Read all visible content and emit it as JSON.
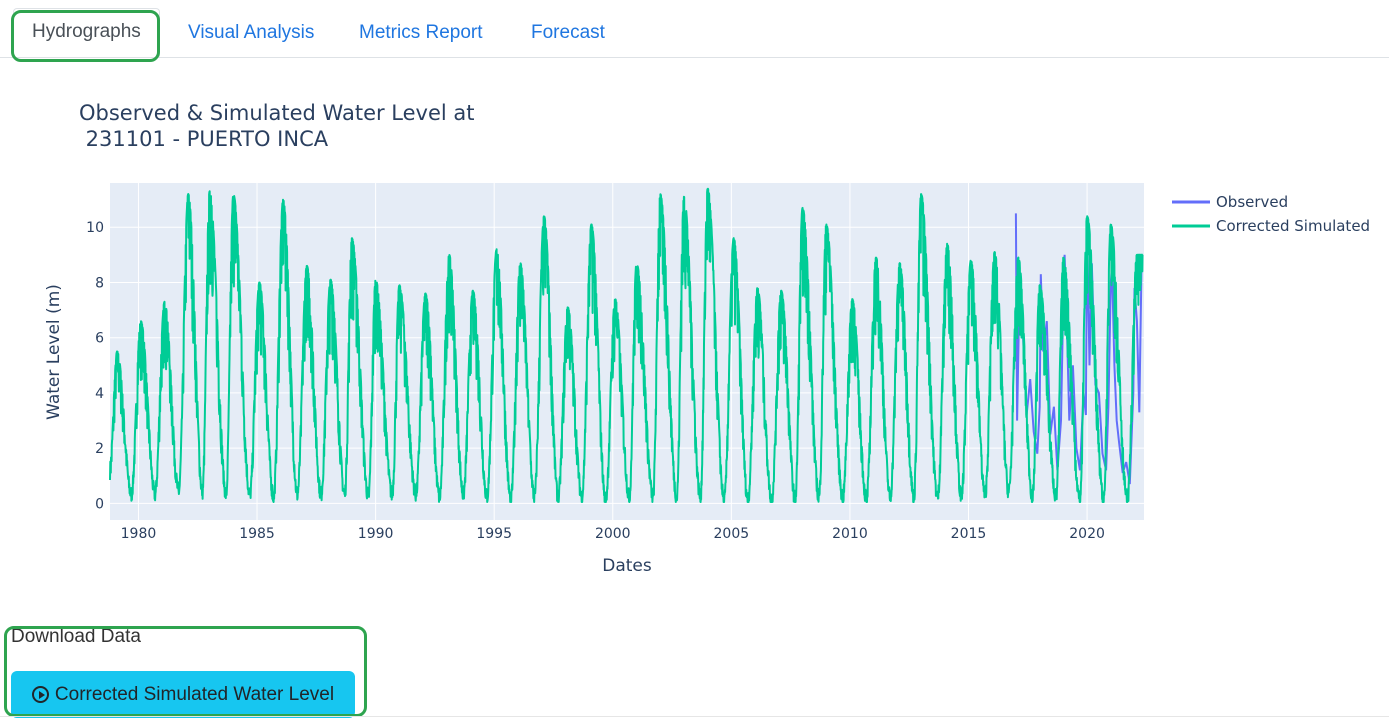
{
  "tabs": [
    {
      "label": "Hydrographs",
      "active": true
    },
    {
      "label": "Visual Analysis",
      "active": false
    },
    {
      "label": "Metrics Report",
      "active": false
    },
    {
      "label": "Forecast",
      "active": false
    }
  ],
  "download": {
    "label": "Download Data",
    "button_label": "Corrected Simulated Water Level",
    "button_icon": "play-circle-icon",
    "button_color": "#17c6f0"
  },
  "highlight_color": "#2ea44f",
  "chart_data": {
    "type": "line",
    "title_line1": "Observed & Simulated Water Level at",
    "title_line2": " 231101 - PUERTO INCA",
    "xlabel": "Dates",
    "ylabel": "Water Level (m)",
    "xlim": [
      1978.8,
      2022.4
    ],
    "ylim": [
      -0.6,
      11.6
    ],
    "x_ticks": [
      1980,
      1985,
      1990,
      1995,
      2000,
      2005,
      2010,
      2015,
      2020
    ],
    "y_ticks": [
      0,
      2,
      4,
      6,
      8,
      10
    ],
    "grid": true,
    "legend_position": "top-right",
    "series": [
      {
        "name": "Observed",
        "color": "#636efa",
        "x": [
          2017.0,
          2017.05,
          2017.15,
          2017.3,
          2017.45,
          2017.6,
          2017.75,
          2017.9,
          2018.0,
          2018.05,
          2018.15,
          2018.3,
          2018.45,
          2018.6,
          2018.75,
          2018.9,
          2019.0,
          2019.05,
          2019.15,
          2019.25,
          2019.4,
          2019.55,
          2019.7,
          2019.85,
          2019.95,
          2020.0,
          2020.1,
          2020.2,
          2020.35,
          2020.5,
          2020.65,
          2020.8,
          2020.9,
          2021.0,
          2021.05,
          2021.15,
          2021.25,
          2021.35,
          2021.5,
          2021.65,
          2021.8,
          2021.95,
          2022.0,
          2022.1,
          2022.2,
          2022.3
        ],
        "y": [
          10.5,
          3.0,
          7.8,
          6.0,
          3.2,
          4.5,
          2.6,
          1.8,
          3.5,
          8.3,
          5.5,
          6.6,
          2.5,
          3.5,
          1.2,
          3.0,
          7.6,
          9.0,
          6.4,
          3.0,
          5.0,
          2.0,
          1.2,
          4.0,
          3.2,
          10.1,
          5.0,
          8.7,
          4.3,
          4.0,
          1.8,
          1.2,
          3.5,
          8.0,
          8.6,
          5.0,
          3.0,
          2.2,
          1.1,
          1.5,
          0.7,
          4.0,
          7.8,
          6.6,
          3.3,
          8.8
        ]
      },
      {
        "name": "Corrected Simulated",
        "color": "#00cc96",
        "annual_peaks": [
          [
            1979.1,
            5.2
          ],
          [
            1980.1,
            6.3
          ],
          [
            1981.1,
            7.0
          ],
          [
            1982.1,
            10.9
          ],
          [
            1983.0,
            11.0
          ],
          [
            1984.0,
            10.9
          ],
          [
            1985.1,
            7.7
          ],
          [
            1986.1,
            10.7
          ],
          [
            1987.1,
            8.3
          ],
          [
            1988.1,
            7.8
          ],
          [
            1989.0,
            9.3
          ],
          [
            1990.0,
            7.8
          ],
          [
            1991.0,
            7.6
          ],
          [
            1992.1,
            7.3
          ],
          [
            1993.1,
            8.7
          ],
          [
            1994.1,
            7.4
          ],
          [
            1995.1,
            8.9
          ],
          [
            1996.1,
            8.4
          ],
          [
            1997.1,
            10.1
          ],
          [
            1998.1,
            6.8
          ],
          [
            1999.1,
            9.8
          ],
          [
            2000.1,
            7.1
          ],
          [
            2001.0,
            8.4
          ],
          [
            2002.0,
            10.9
          ],
          [
            2003.0,
            10.8
          ],
          [
            2004.0,
            11.1
          ],
          [
            2005.1,
            9.3
          ],
          [
            2006.1,
            7.5
          ],
          [
            2007.1,
            7.4
          ],
          [
            2008.0,
            10.4
          ],
          [
            2009.0,
            9.8
          ],
          [
            2010.1,
            7.1
          ],
          [
            2011.1,
            8.6
          ],
          [
            2012.1,
            8.4
          ],
          [
            2013.0,
            10.9
          ],
          [
            2014.1,
            9.1
          ],
          [
            2015.1,
            8.5
          ],
          [
            2016.1,
            8.8
          ],
          [
            2017.1,
            8.6
          ],
          [
            2018.0,
            7.6
          ],
          [
            2019.0,
            8.6
          ],
          [
            2020.0,
            10.1
          ],
          [
            2021.0,
            9.8
          ],
          [
            2022.1,
            8.7
          ]
        ],
        "annual_lows": [
          [
            1979.7,
            0.3
          ],
          [
            1980.7,
            0.3
          ],
          [
            1981.7,
            0.4
          ],
          [
            1982.7,
            0.4
          ],
          [
            1983.7,
            0.3
          ],
          [
            1984.7,
            0.3
          ],
          [
            1985.7,
            0.2
          ],
          [
            1986.7,
            0.3
          ],
          [
            1987.7,
            0.3
          ],
          [
            1988.7,
            0.3
          ],
          [
            1989.7,
            0.2
          ],
          [
            1990.7,
            0.3
          ],
          [
            1991.7,
            0.3
          ],
          [
            1992.7,
            0.2
          ],
          [
            1993.7,
            0.3
          ],
          [
            1994.7,
            0.2
          ],
          [
            1995.7,
            0.1
          ],
          [
            1996.7,
            0.2
          ],
          [
            1997.7,
            0.2
          ],
          [
            1998.7,
            0.2
          ],
          [
            1999.7,
            0.1
          ],
          [
            2000.7,
            0.2
          ],
          [
            2001.7,
            0.2
          ],
          [
            2002.7,
            0.2
          ],
          [
            2003.7,
            0.2
          ],
          [
            2004.7,
            0.1
          ],
          [
            2005.7,
            0.1
          ],
          [
            2006.7,
            0.1
          ],
          [
            2007.7,
            0.1
          ],
          [
            2008.7,
            0.2
          ],
          [
            2009.7,
            0.2
          ],
          [
            2010.7,
            0.1
          ],
          [
            2011.7,
            0.2
          ],
          [
            2012.7,
            0.2
          ],
          [
            2013.7,
            0.2
          ],
          [
            2014.7,
            0.2
          ],
          [
            2015.7,
            0.3
          ],
          [
            2016.7,
            0.4
          ],
          [
            2017.7,
            0.2
          ],
          [
            2018.7,
            0.2
          ],
          [
            2019.7,
            0.1
          ],
          [
            2020.7,
            0.1
          ],
          [
            2021.7,
            0.1
          ]
        ]
      }
    ]
  }
}
